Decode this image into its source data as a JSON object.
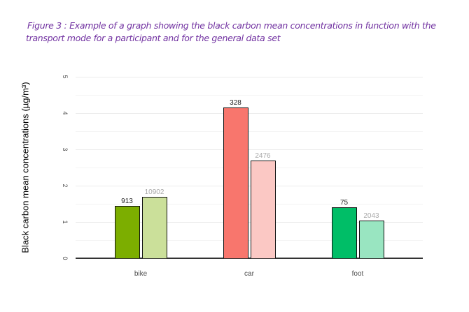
{
  "caption": {
    "line1": "Figure 3 : Example of a graph showing the black carbon mean concentrations in function with the",
    "line2": "transport mode for a participant and for the general data set"
  },
  "chart_data": {
    "type": "bar",
    "title": "",
    "xlabel": "",
    "ylabel": "Black carbon mean concentrations (µg/m³)",
    "ylim": [
      0,
      5
    ],
    "yticks": [
      "0",
      "1",
      "2",
      "3",
      "4",
      "5"
    ],
    "grid": true,
    "legend": "none",
    "categories": [
      "bike",
      "car",
      "foot"
    ],
    "series": [
      {
        "name": "participant",
        "values": [
          1.44,
          4.15,
          1.4
        ],
        "counts": [
          "913",
          "328",
          "75"
        ],
        "colors": [
          "#7cae00",
          "#f8766d",
          "#00be67"
        ]
      },
      {
        "name": "general data set",
        "values": [
          1.69,
          2.69,
          1.04
        ],
        "counts": [
          "10902",
          "2476",
          "2043"
        ],
        "colors": [
          "#cbe09a",
          "#fbc8c4",
          "#99e5c1"
        ]
      }
    ]
  }
}
